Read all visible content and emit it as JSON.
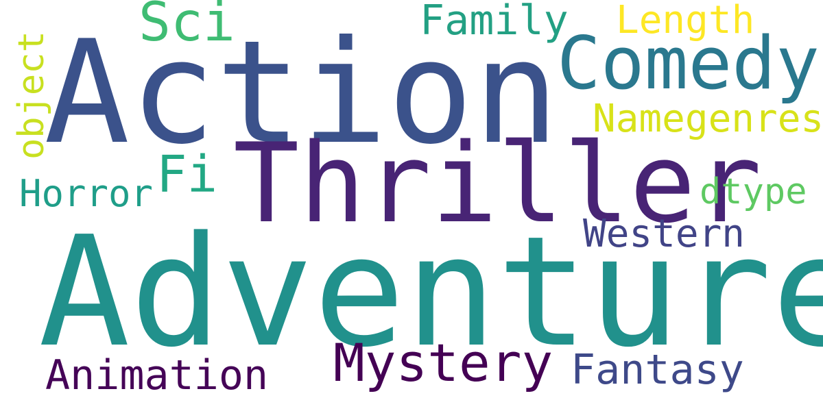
{
  "words": [
    {
      "text": "Action",
      "color": "#3b528b"
    },
    {
      "text": "Adventure",
      "color": "#21918c"
    },
    {
      "text": "Thriller",
      "color": "#482475"
    },
    {
      "text": "Comedy",
      "color": "#2a788e"
    },
    {
      "text": "Mystery",
      "color": "#440154"
    },
    {
      "text": "Sci",
      "color": "#3fbc73"
    },
    {
      "text": "Fi",
      "color": "#22a884"
    },
    {
      "text": "Family",
      "color": "#23a083"
    },
    {
      "text": "Length",
      "color": "#fde725"
    },
    {
      "text": "Namegenres",
      "color": "#d8e219"
    },
    {
      "text": "object",
      "color": "#c8e020"
    },
    {
      "text": "Horror",
      "color": "#1f9e89"
    },
    {
      "text": "dtype",
      "color": "#5ec962"
    },
    {
      "text": "Western",
      "color": "#414487"
    },
    {
      "text": "Animation",
      "color": "#450457"
    },
    {
      "text": "Fantasy",
      "color": "#3e4989"
    }
  ]
}
